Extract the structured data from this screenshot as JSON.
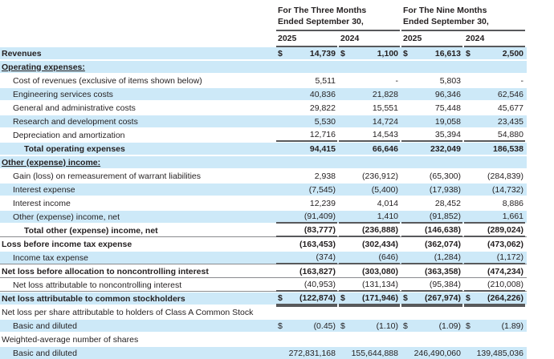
{
  "header": {
    "groups": [
      {
        "line1": "For The Three Months",
        "line2": "Ended September 30,",
        "years": [
          "2025",
          "2024"
        ]
      },
      {
        "line1": "For The Nine Months",
        "line2": "Ended September 30,",
        "years": [
          "2025",
          "2024"
        ]
      }
    ]
  },
  "colors": {
    "stripe_blue": "#cde9f8",
    "rule_dark": "#58595b",
    "rule_light": "#898b8e",
    "text": "#231f20"
  },
  "table": {
    "currency_symbol": "$",
    "rows": [
      {
        "label": "Revenues",
        "bold": true,
        "stripe": true,
        "indent": 0,
        "dollar": true,
        "values": [
          "14,739",
          "1,100",
          "16,613",
          "2,500"
        ]
      },
      {
        "label": "Operating expenses:",
        "bold": true,
        "stripe": true,
        "indent": 0,
        "label_underline": true,
        "values": null
      },
      {
        "label": "Cost of revenues (exclusive of items shown below)",
        "stripe": false,
        "indent": 1,
        "values": [
          "5,511",
          "-",
          "5,803",
          "-"
        ]
      },
      {
        "label": "Engineering services costs",
        "stripe": true,
        "indent": 1,
        "values": [
          "40,836",
          "21,828",
          "96,346",
          "62,546"
        ]
      },
      {
        "label": "General and administrative costs",
        "stripe": false,
        "indent": 1,
        "values": [
          "29,822",
          "15,551",
          "75,448",
          "45,677"
        ]
      },
      {
        "label": "Research and development costs",
        "stripe": true,
        "indent": 1,
        "values": [
          "5,530",
          "14,724",
          "19,058",
          "23,435"
        ]
      },
      {
        "label": "Depreciation and amortization",
        "stripe": false,
        "indent": 1,
        "rule_under_values": "single",
        "values": [
          "12,716",
          "14,543",
          "35,394",
          "54,880"
        ]
      },
      {
        "label": "Total operating expenses",
        "bold": true,
        "stripe": true,
        "indent": 2,
        "values": [
          "94,415",
          "66,646",
          "232,049",
          "186,538"
        ]
      },
      {
        "label": "Other (expense) income:",
        "bold": true,
        "stripe": true,
        "indent": 0,
        "label_underline": true,
        "values": null
      },
      {
        "label": "Gain (loss) on remeasurement of warrant liabilities",
        "stripe": false,
        "indent": 1,
        "values": [
          "2,938",
          "(236,912)",
          "(65,300)",
          "(284,839)"
        ]
      },
      {
        "label": "Interest expense",
        "stripe": true,
        "indent": 1,
        "values": [
          "(7,545)",
          "(5,400)",
          "(17,938)",
          "(14,732)"
        ]
      },
      {
        "label": "Interest income",
        "stripe": false,
        "indent": 1,
        "values": [
          "12,239",
          "4,014",
          "28,452",
          "8,886"
        ]
      },
      {
        "label": "Other (expense) income, net",
        "stripe": true,
        "indent": 1,
        "rule_under_values": "single",
        "values": [
          "(91,409)",
          "1,410",
          "(91,852)",
          "1,661"
        ]
      },
      {
        "label": "Total other (expense) income, net",
        "bold": true,
        "stripe": false,
        "indent": 2,
        "rule_under_values": "single",
        "rule_full_width": true,
        "values": [
          "(83,777)",
          "(236,888)",
          "(146,638)",
          "(289,024)"
        ]
      },
      {
        "label": "Loss before income tax expense",
        "bold": true,
        "stripe": false,
        "indent": 0,
        "values": [
          "(163,453)",
          "(302,434)",
          "(362,074)",
          "(473,062)"
        ]
      },
      {
        "label": "Income tax expense",
        "stripe": true,
        "indent": 1,
        "rule_under_values": "single",
        "rule_full_width": true,
        "values": [
          "(374)",
          "(646)",
          "(1,284)",
          "(1,172)"
        ]
      },
      {
        "label": "Net loss before allocation to noncontrolling interest",
        "bold": true,
        "stripe": false,
        "indent": 0,
        "rule_full_width": true,
        "values": [
          "(163,827)",
          "(303,080)",
          "(363,358)",
          "(474,234)"
        ]
      },
      {
        "label": "Net loss attributable to noncontrolling interest",
        "stripe": false,
        "indent": 1,
        "rule_under_values": "single",
        "rule_full_width": true,
        "values": [
          "(40,953)",
          "(131,134)",
          "(95,384)",
          "(210,008)"
        ]
      },
      {
        "label": "Net loss attributable to common stockholders",
        "bold": true,
        "stripe": true,
        "indent": 0,
        "dollar": true,
        "rule_under_values": "double",
        "values": [
          "(122,874)",
          "(171,946)",
          "(267,974)",
          "(264,226)"
        ]
      },
      {
        "label": "Net loss per share attributable to holders of Class A Common Stock",
        "stripe": false,
        "indent": 0,
        "values": null
      },
      {
        "label": "Basic and diluted",
        "stripe": true,
        "indent": 1,
        "dollar": true,
        "values": [
          "(0.45)",
          "(1.10)",
          "(1.09)",
          "(1.89)"
        ]
      },
      {
        "label": "Weighted-average number of shares",
        "stripe": false,
        "indent": 0,
        "values": null
      },
      {
        "label": "Basic and diluted",
        "stripe": true,
        "indent": 1,
        "values": [
          "272,831,168",
          "155,644,888",
          "246,490,060",
          "139,485,036"
        ]
      }
    ]
  }
}
